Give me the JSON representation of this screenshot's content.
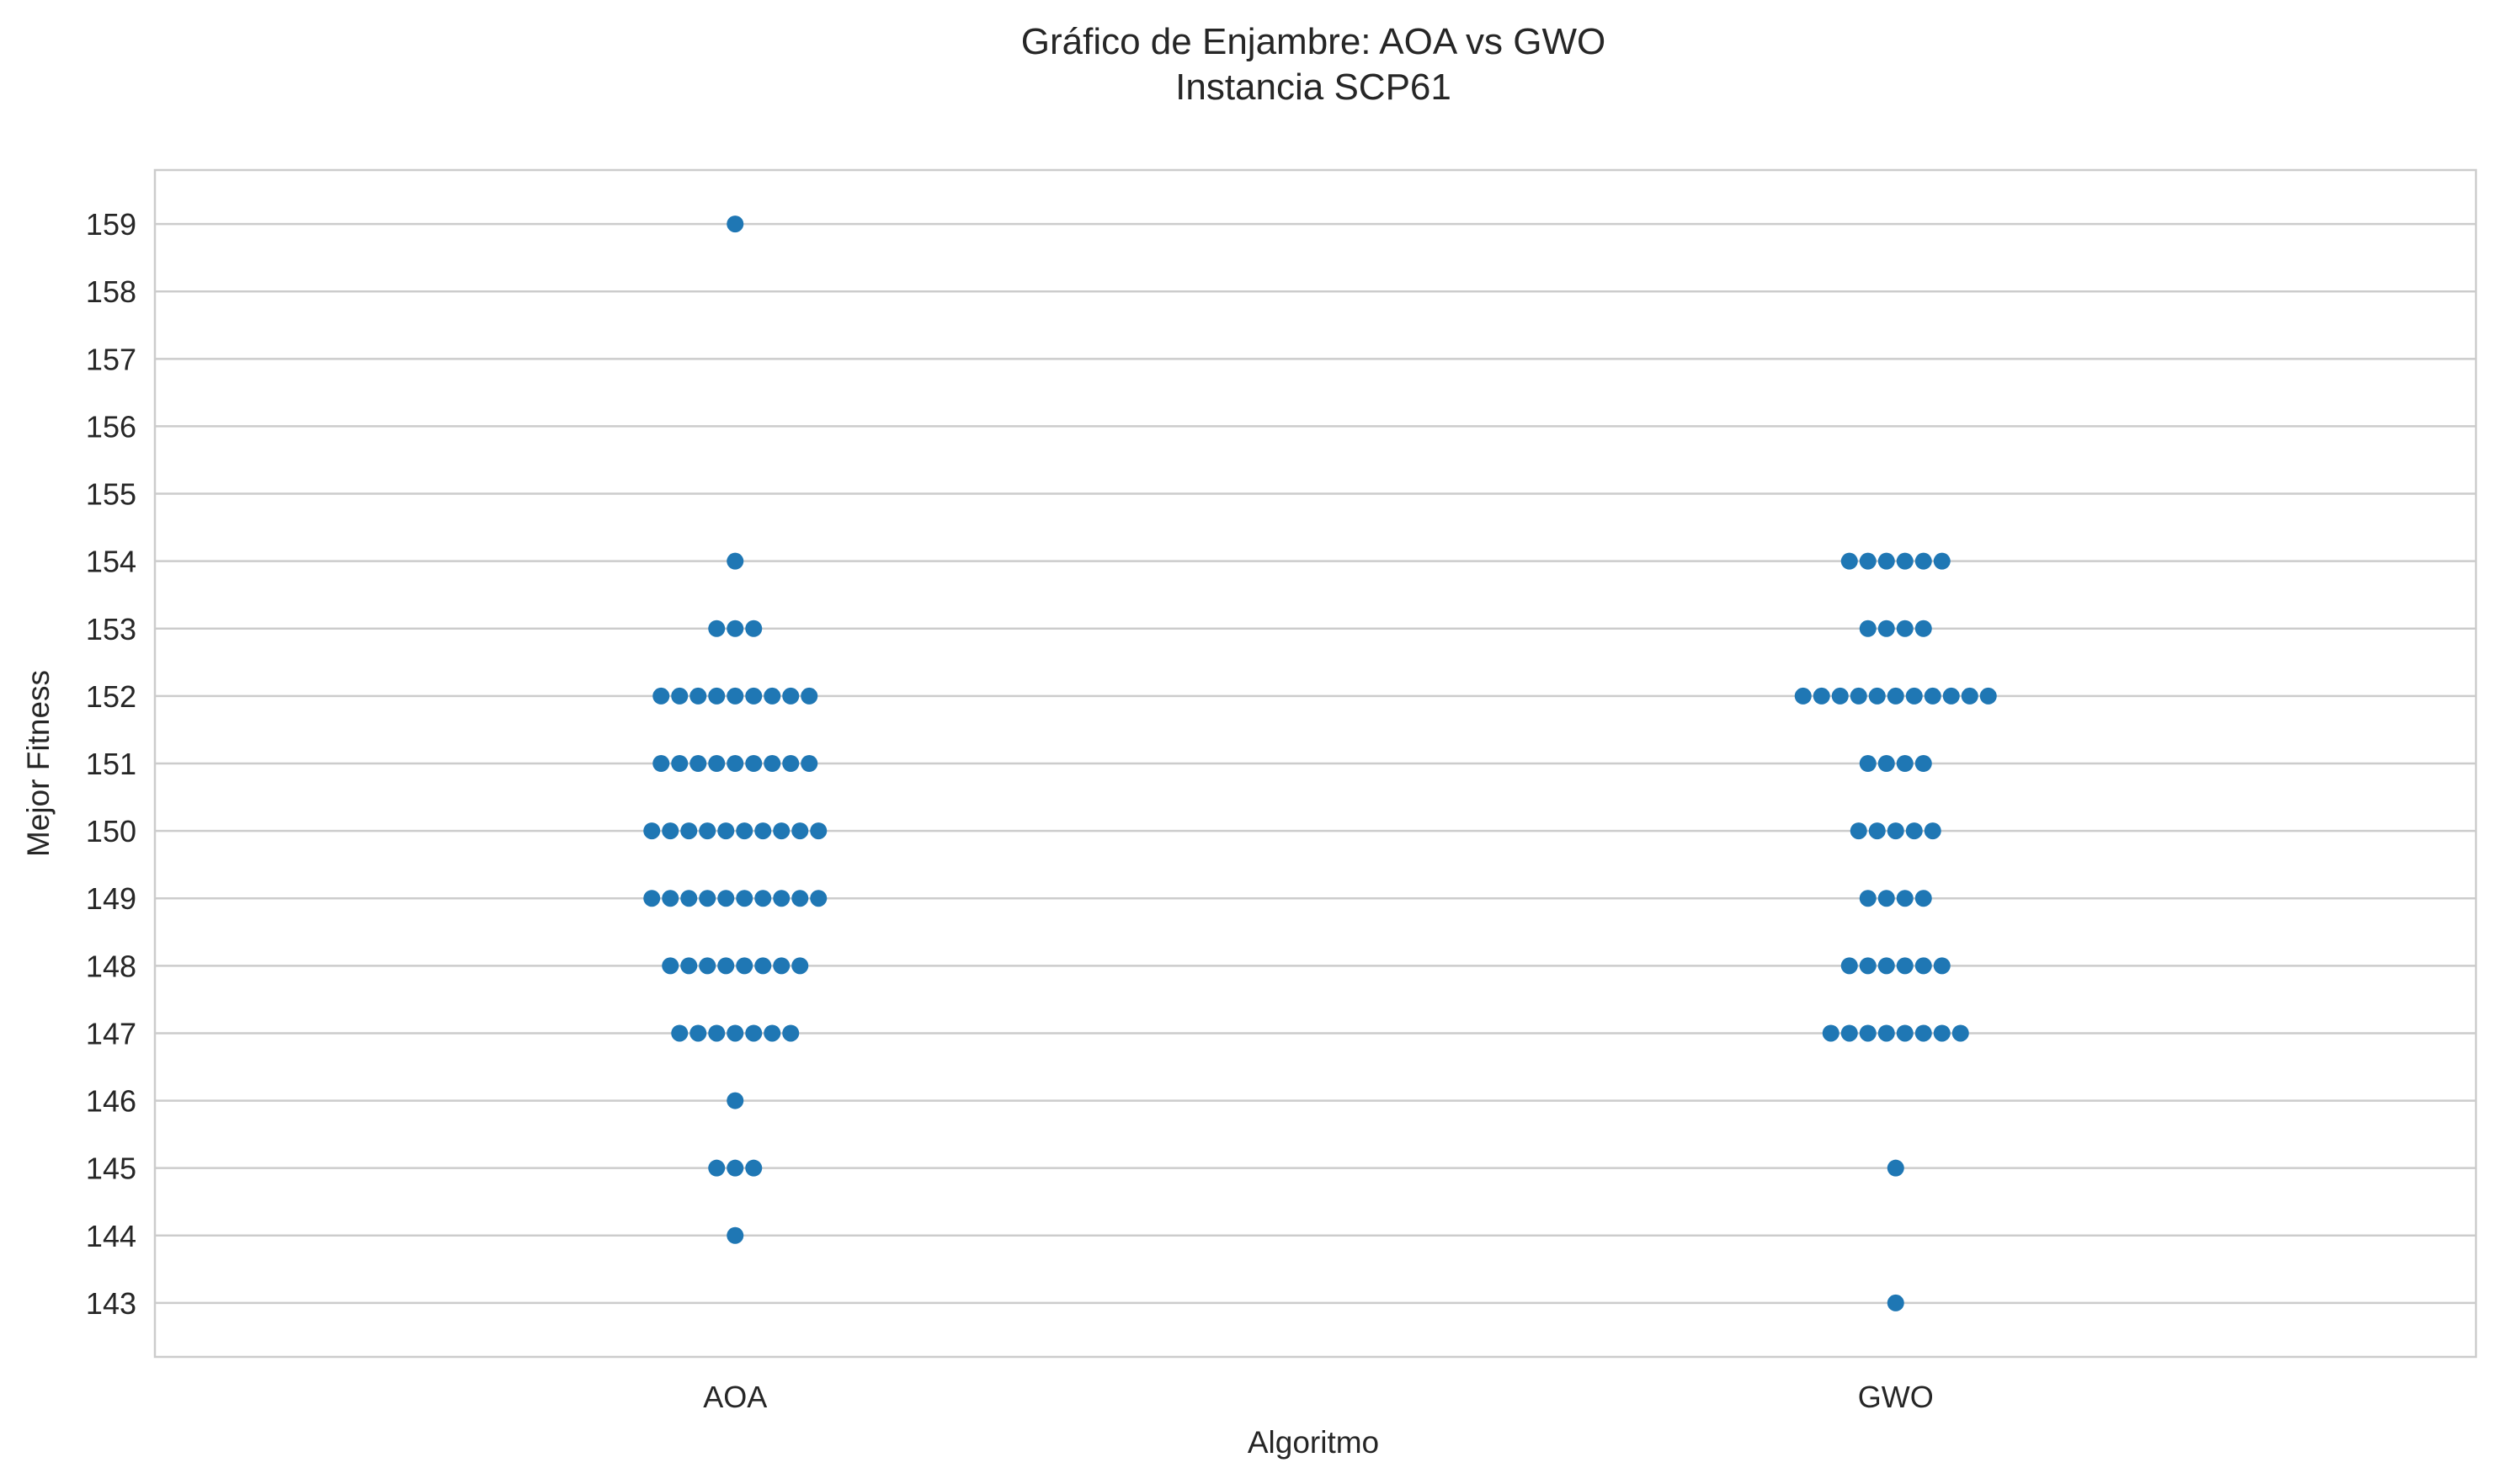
{
  "chart_data": {
    "type": "scatter",
    "subtype": "swarm",
    "title": "Gráfico de Enjambre: AOA vs GWO",
    "subtitle": "Instancia SCP61",
    "xlabel": "Algoritmo",
    "ylabel": "Mejor Fitness",
    "categories": [
      "AOA",
      "GWO"
    ],
    "ylim": [
      142.2,
      159.8
    ],
    "yticks": [
      143,
      144,
      145,
      146,
      147,
      148,
      149,
      150,
      151,
      152,
      153,
      154,
      155,
      156,
      157,
      158,
      159
    ],
    "grid": "horizontal",
    "point_color": "#1f77b4",
    "series": [
      {
        "category": "AOA",
        "points": [
          {
            "value": 159,
            "count": 1
          },
          {
            "value": 154,
            "count": 1
          },
          {
            "value": 153,
            "count": 3
          },
          {
            "value": 152,
            "count": 9
          },
          {
            "value": 151,
            "count": 9
          },
          {
            "value": 150,
            "count": 10
          },
          {
            "value": 149,
            "count": 10
          },
          {
            "value": 148,
            "count": 8
          },
          {
            "value": 147,
            "count": 7
          },
          {
            "value": 146,
            "count": 1
          },
          {
            "value": 145,
            "count": 3
          },
          {
            "value": 144,
            "count": 1
          }
        ]
      },
      {
        "category": "GWO",
        "points": [
          {
            "value": 154,
            "count": 6
          },
          {
            "value": 153,
            "count": 4
          },
          {
            "value": 152,
            "count": 11
          },
          {
            "value": 151,
            "count": 4
          },
          {
            "value": 150,
            "count": 5
          },
          {
            "value": 149,
            "count": 4
          },
          {
            "value": 148,
            "count": 6
          },
          {
            "value": 147,
            "count": 8
          },
          {
            "value": 145,
            "count": 1
          },
          {
            "value": 143,
            "count": 1
          }
        ]
      }
    ]
  }
}
